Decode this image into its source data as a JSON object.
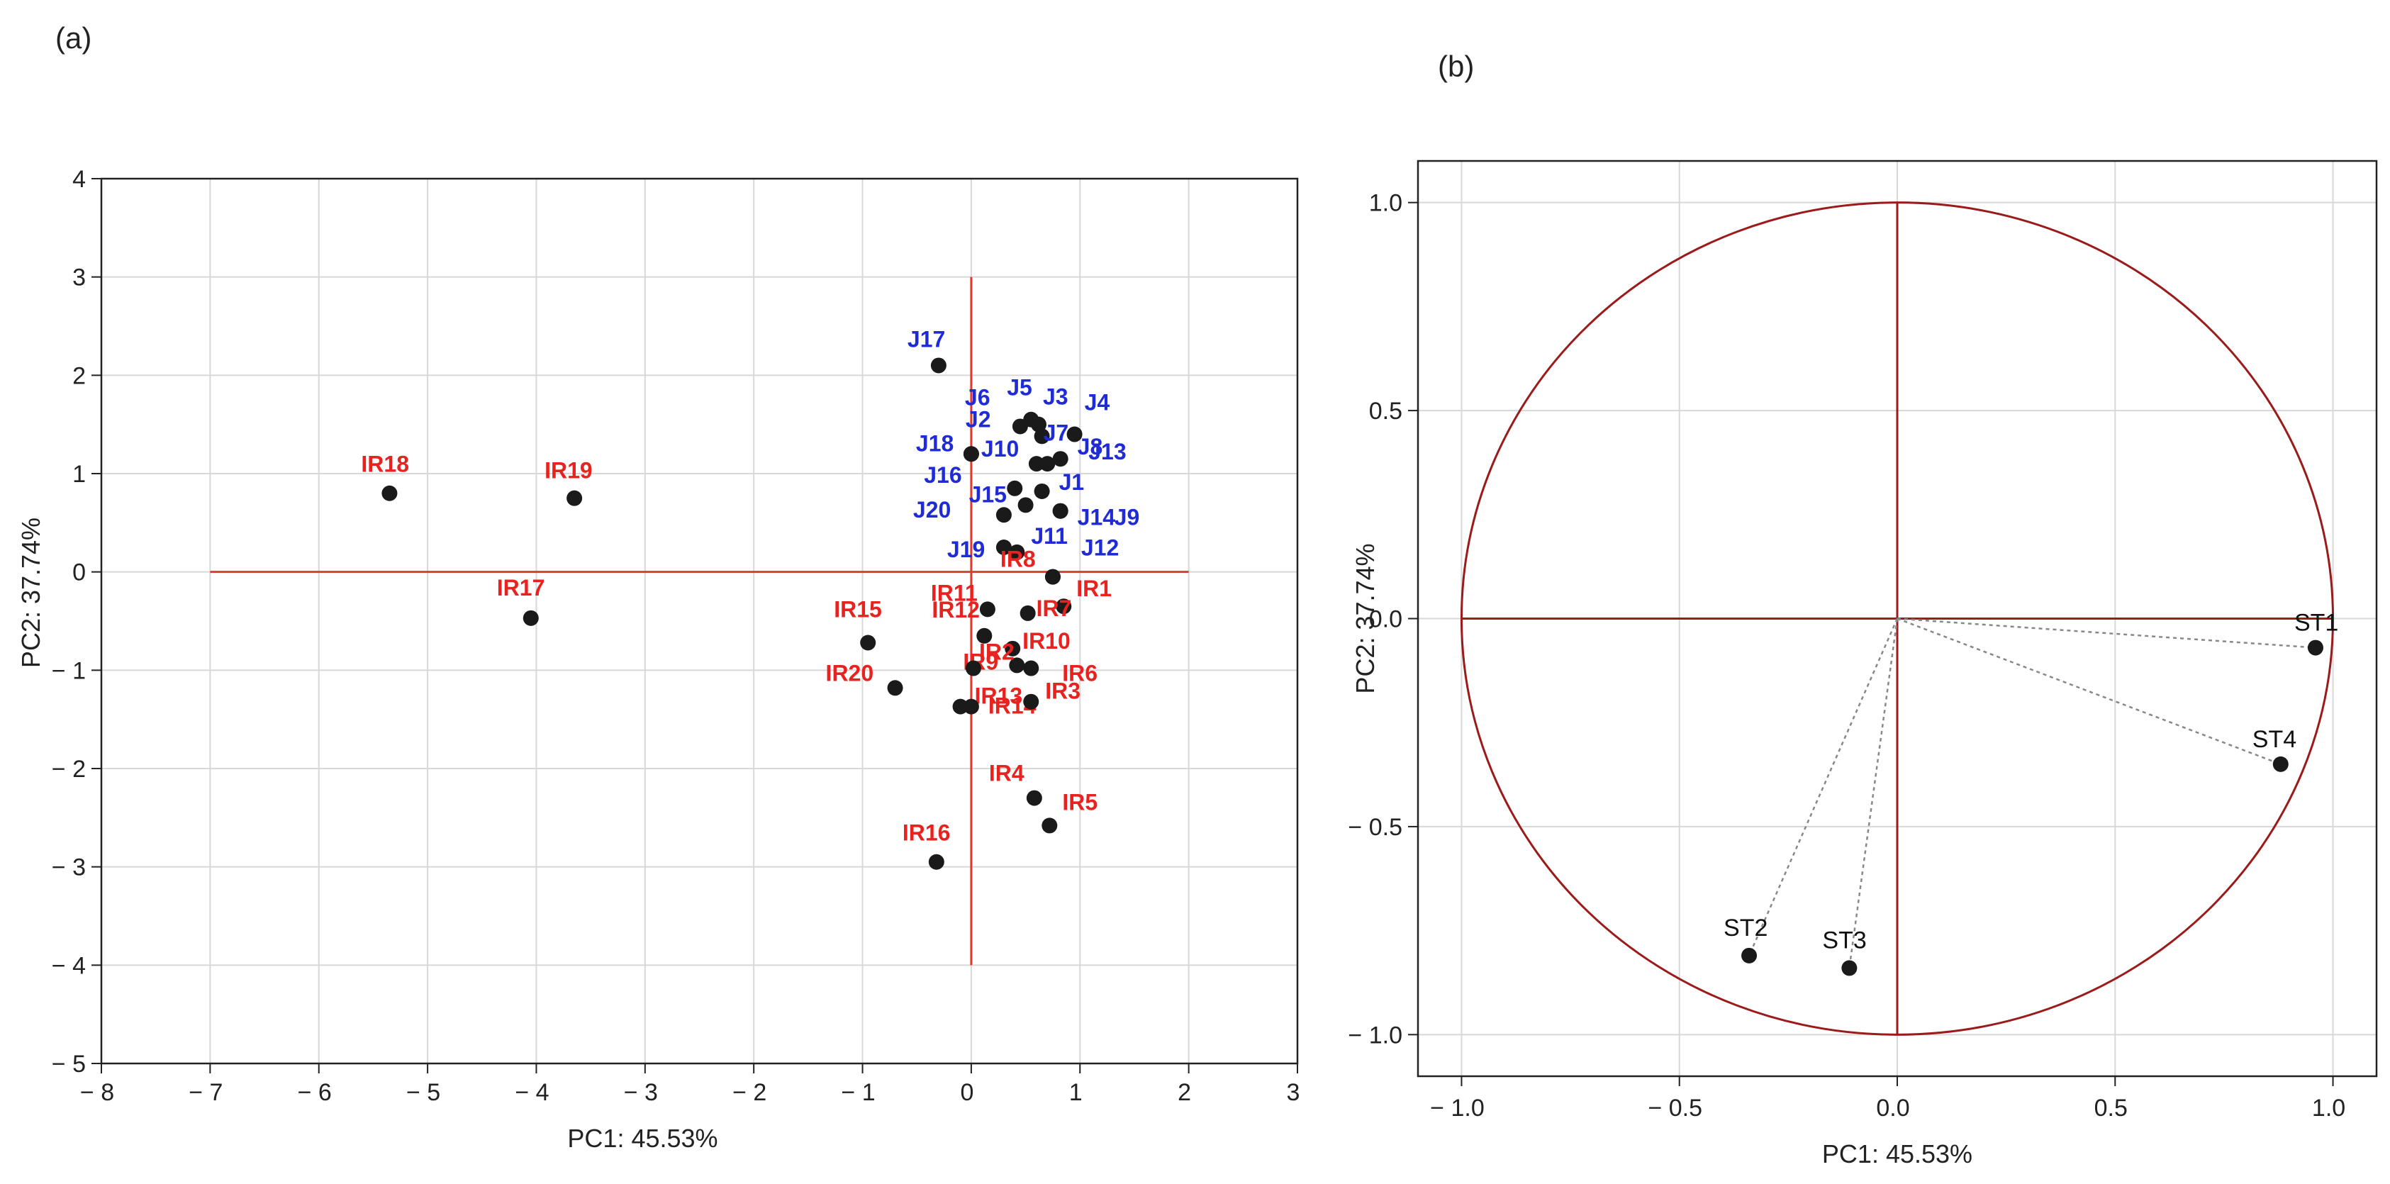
{
  "figure": {
    "panel_a_label": "(a)",
    "panel_b_label": "(b)"
  },
  "chart_data": [
    {
      "type": "scatter",
      "panel": "(a)",
      "title": "",
      "xlabel": "PC1: 45.53%",
      "ylabel": "PC2: 37.74%",
      "xlim": [
        -8,
        3
      ],
      "ylim": [
        -5,
        4
      ],
      "xticks": [
        -8,
        -7,
        -6,
        -5,
        -4,
        -3,
        -2,
        -1,
        0,
        1,
        2,
        3
      ],
      "yticks": [
        -5,
        -4,
        -3,
        -2,
        -1,
        0,
        1,
        2,
        3,
        4
      ],
      "xtick_labels": [
        "-8",
        "-7",
        "-6",
        "-5",
        "-4",
        "-3",
        "-2",
        "-1",
        "0",
        "1",
        "2",
        "3"
      ],
      "ytick_labels": [
        "-5",
        "-4",
        "-3",
        "-2",
        "-1",
        "0",
        "1",
        "2",
        "3",
        "4"
      ],
      "grid": true,
      "colors": {
        "axis_lines": "#e03a2e",
        "point": "#1a1a1a",
        "J": "#1f2bd6",
        "IR": "#e8231f"
      },
      "reference_lines": {
        "horizontal": {
          "y": 0,
          "x_range": [
            -7,
            2
          ]
        },
        "vertical": {
          "x": 0,
          "y_range": [
            -4,
            3
          ]
        }
      },
      "series": [
        {
          "name": "J",
          "points": [
            {
              "label": "J17",
              "x": -0.3,
              "y": 2.1
            },
            {
              "label": "J6",
              "x": 0.45,
              "y": 1.48
            },
            {
              "label": "J5",
              "x": 0.55,
              "y": 1.55
            },
            {
              "label": "J3",
              "x": 0.62,
              "y": 1.5
            },
            {
              "label": "J4",
              "x": 0.95,
              "y": 1.4
            },
            {
              "label": "J7",
              "x": 0.65,
              "y": 1.38
            },
            {
              "label": "J8",
              "x": 0.82,
              "y": 1.15
            },
            {
              "label": "J2",
              "x": 0.0,
              "y": 1.2
            },
            {
              "label": "J18",
              "x": 0.0,
              "y": 1.2
            },
            {
              "label": "J10",
              "x": 0.6,
              "y": 1.1
            },
            {
              "label": "J13",
              "x": 0.7,
              "y": 1.1
            },
            {
              "label": "J16",
              "x": 0.4,
              "y": 0.85
            },
            {
              "label": "J15",
              "x": 0.5,
              "y": 0.68
            },
            {
              "label": "J1",
              "x": 0.65,
              "y": 0.82
            },
            {
              "label": "J20",
              "x": 0.3,
              "y": 0.58
            },
            {
              "label": "J14",
              "x": 0.82,
              "y": 0.62
            },
            {
              "label": "J9",
              "x": 0.82,
              "y": 0.62
            },
            {
              "label": "J19",
              "x": 0.3,
              "y": 0.25
            },
            {
              "label": "J11",
              "x": 0.42,
              "y": 0.2
            },
            {
              "label": "J12",
              "x": 0.75,
              "y": -0.05
            }
          ]
        },
        {
          "name": "IR",
          "points": [
            {
              "label": "IR18",
              "x": -5.35,
              "y": 0.8
            },
            {
              "label": "IR19",
              "x": -3.65,
              "y": 0.75
            },
            {
              "label": "IR17",
              "x": -4.05,
              "y": -0.47
            },
            {
              "label": "IR11",
              "x": 0.15,
              "y": -0.38
            },
            {
              "label": "IR8",
              "x": 0.75,
              "y": -0.05
            },
            {
              "label": "IR1",
              "x": 0.85,
              "y": -0.35
            },
            {
              "label": "IR7",
              "x": 0.52,
              "y": -0.42
            },
            {
              "label": "IR15",
              "x": -0.95,
              "y": -0.72
            },
            {
              "label": "IR12",
              "x": 0.12,
              "y": -0.65
            },
            {
              "label": "IR10",
              "x": 0.38,
              "y": -0.78
            },
            {
              "label": "IR9",
              "x": 0.42,
              "y": -0.95
            },
            {
              "label": "IR2",
              "x": 0.02,
              "y": -0.98
            },
            {
              "label": "IR6",
              "x": 0.55,
              "y": -0.98
            },
            {
              "label": "IR20",
              "x": -0.7,
              "y": -1.18
            },
            {
              "label": "IR13",
              "x": -0.1,
              "y": -1.37
            },
            {
              "label": "IR14",
              "x": 0.0,
              "y": -1.37
            },
            {
              "label": "IR3",
              "x": 0.55,
              "y": -1.32
            },
            {
              "label": "IR4",
              "x": 0.58,
              "y": -2.3
            },
            {
              "label": "IR5",
              "x": 0.72,
              "y": -2.58
            },
            {
              "label": "IR16",
              "x": -0.32,
              "y": -2.95
            }
          ]
        }
      ]
    },
    {
      "type": "scatter",
      "panel": "(b)",
      "title": "",
      "xlabel": "PC1: 45.53%",
      "ylabel": "PC2: 37.74%",
      "xlim": [
        -1.1,
        1.1
      ],
      "ylim": [
        -1.1,
        1.1
      ],
      "xticks": [
        -1.0,
        -0.5,
        0.0,
        0.5,
        1.0
      ],
      "yticks": [
        -1.0,
        -0.5,
        0.0,
        0.5,
        1.0
      ],
      "xtick_labels": [
        "-1.0",
        "-0.5",
        "0.0",
        "0.5",
        "1.0"
      ],
      "ytick_labels": [
        "-1.0",
        "-0.5",
        "0.0",
        "0.5",
        "1.0"
      ],
      "grid": true,
      "colors": {
        "circle": "#9b1b1b",
        "loading_lines": "#888888",
        "point": "#1a1a1a",
        "label": "#111111"
      },
      "unit_circle_radius": 1.0,
      "points": [
        {
          "label": "ST1",
          "x": 0.96,
          "y": -0.07
        },
        {
          "label": "ST2",
          "x": -0.34,
          "y": -0.81
        },
        {
          "label": "ST3",
          "x": -0.11,
          "y": -0.84
        },
        {
          "label": "ST4",
          "x": 0.88,
          "y": -0.35
        }
      ]
    }
  ]
}
